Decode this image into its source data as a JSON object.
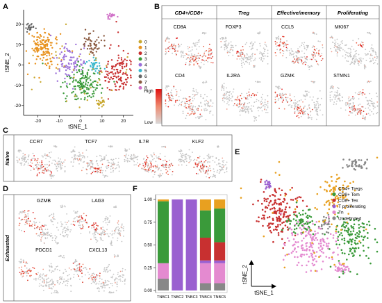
{
  "panels": {
    "A": {
      "letter": "A",
      "xlabel": "tSNE_1",
      "ylabel": "tSNE_2",
      "xticks": [
        "-20",
        "-10",
        "0",
        "10",
        "20"
      ],
      "yticks": [
        "20",
        "10",
        "0",
        "-10",
        "-20"
      ],
      "legend": [
        "0",
        "1",
        "2",
        "3",
        "4",
        "5",
        "6",
        "7",
        "8"
      ],
      "colors": [
        "#c8a830",
        "#e8921e",
        "#c83030",
        "#3a9a3a",
        "#9a6ed8",
        "#3ab8d0",
        "#666666",
        "#8a5a40",
        "#d070c8"
      ],
      "scale_high": "High",
      "scale_low": "Low"
    },
    "B": {
      "letter": "B",
      "groups": [
        "CD4+/CD8+",
        "Treg",
        "Effective/memory",
        "Proliferating"
      ],
      "top_genes": [
        "CD8A",
        "FOXP3",
        "CCL5",
        "MKI67"
      ],
      "bottom_genes": [
        "CD4",
        "IL2RA",
        "GZMK",
        "STMN1"
      ]
    },
    "C": {
      "letter": "C",
      "side_label": "Naive",
      "genes": [
        "CCR7",
        "TCF7",
        "IL7R",
        "KLF2"
      ]
    },
    "D": {
      "letter": "D",
      "side_label": "Exhausted",
      "genes": [
        "GZMB",
        "LAG3",
        "PDCD1",
        "CXCL13"
      ]
    },
    "E": {
      "letter": "E",
      "xlabel": "tSNE_1",
      "ylabel": "tSNE_2",
      "legend": [
        {
          "label": "CD4+ Tregs",
          "color": "#e8a020"
        },
        {
          "label": "CD8+ Tem",
          "color": "#3a9a3a"
        },
        {
          "label": "CD8+ Tex",
          "color": "#c83030"
        },
        {
          "label": "T proliferating",
          "color": "#9a60d0"
        },
        {
          "label": "Tn",
          "color": "#e48ad0"
        },
        {
          "label": "Undefinded",
          "color": "#888888"
        }
      ]
    },
    "F": {
      "letter": "F"
    }
  },
  "chart_data": {
    "type": "bar",
    "stacked": true,
    "categories": [
      "TNBC1",
      "TNBC2",
      "TNBC3",
      "TNBC4",
      "TNBC5"
    ],
    "ylim": [
      0,
      1
    ],
    "yticks": [
      "0.00",
      "0.25",
      "0.50",
      "0.75",
      "1.00"
    ],
    "series": [
      {
        "color": "#888888",
        "values": [
          0.13,
          0.0,
          0.0,
          0.08,
          0.08
        ]
      },
      {
        "color": "#e48ad0",
        "values": [
          0.17,
          0.0,
          0.0,
          0.22,
          0.22
        ]
      },
      {
        "color": "#9a60d0",
        "values": [
          0.0,
          1.0,
          1.0,
          0.03,
          0.03
        ]
      },
      {
        "color": "#c83030",
        "values": [
          0.0,
          0.0,
          0.0,
          0.25,
          0.2
        ]
      },
      {
        "color": "#3a9a3a",
        "values": [
          0.68,
          0.0,
          0.0,
          0.3,
          0.37
        ]
      },
      {
        "color": "#e8a020",
        "values": [
          0.02,
          0.0,
          0.0,
          0.12,
          0.1
        ]
      }
    ]
  }
}
